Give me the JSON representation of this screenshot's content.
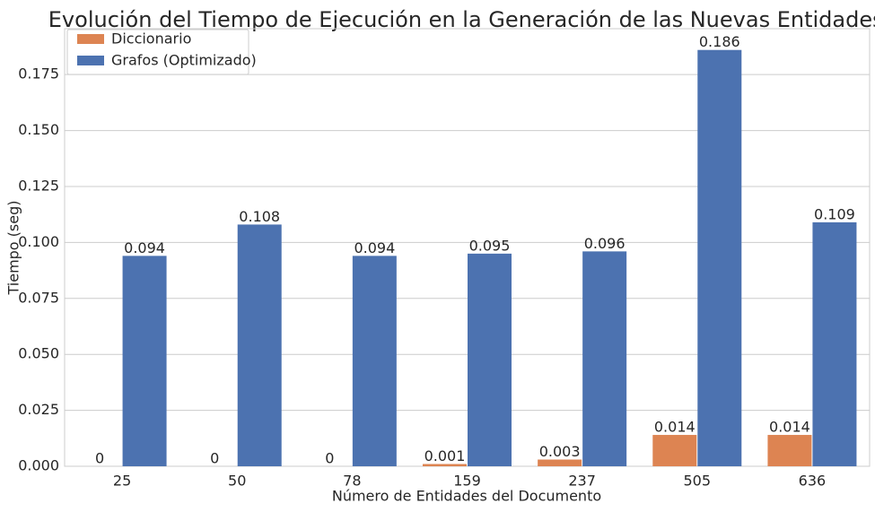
{
  "chart_data": {
    "type": "bar",
    "title": "Evolución del Tiempo de Ejecución en la Generación de las Nuevas Entidades.",
    "xlabel": "Número de Entidades del Documento",
    "ylabel": "Tiempo (seg)",
    "categories": [
      "25",
      "50",
      "78",
      "159",
      "237",
      "505",
      "636"
    ],
    "series": [
      {
        "name": "Diccionario",
        "color": "#dd8452",
        "values": [
          0,
          0,
          0,
          0.001,
          0.003,
          0.014,
          0.014
        ],
        "labels": [
          "0",
          "0",
          "0",
          "0.001",
          "0.003",
          "0.014",
          "0.014"
        ]
      },
      {
        "name": "Grafos (Optimizado)",
        "color": "#4c72b0",
        "values": [
          0.094,
          0.108,
          0.094,
          0.095,
          0.096,
          0.186,
          0.109
        ],
        "labels": [
          "0.094",
          "0.108",
          "0.094",
          "0.095",
          "0.096",
          "0.186",
          "0.109"
        ]
      }
    ],
    "ylim": [
      0,
      0.1955
    ],
    "yticks": [
      "0.000",
      "0.025",
      "0.050",
      "0.075",
      "0.100",
      "0.125",
      "0.150",
      "0.175"
    ],
    "grid": true,
    "legend": "top-left"
  }
}
